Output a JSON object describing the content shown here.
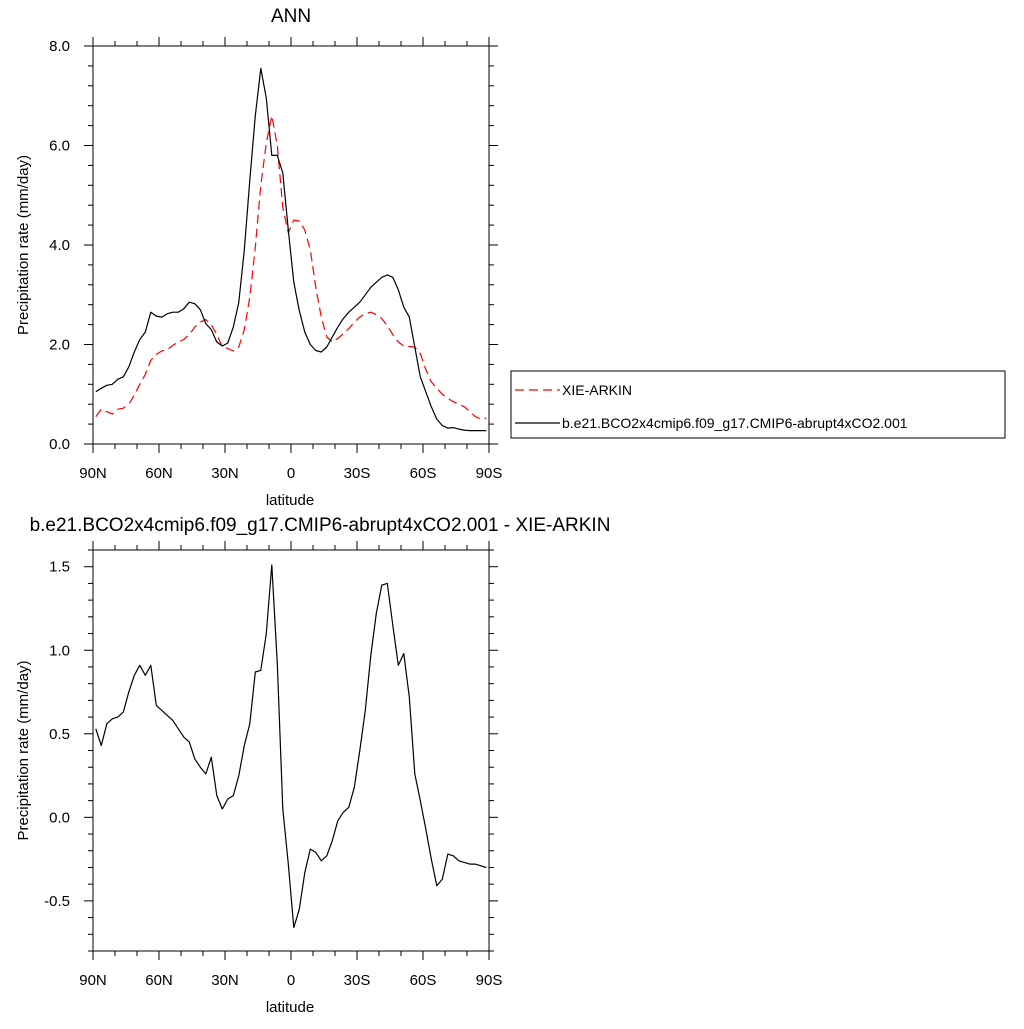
{
  "chart_data": [
    {
      "type": "line",
      "title": "ANN",
      "xlabel": "latitude",
      "ylabel": "Precipitation rate (mm/day)",
      "xlim": [
        90,
        -90
      ],
      "ylim": [
        0,
        8
      ],
      "x_ticks": [
        90,
        60,
        30,
        0,
        -30,
        -60,
        -90
      ],
      "x_tick_labels": [
        "90N",
        "60N",
        "30N",
        "0",
        "30S",
        "60S",
        "90S"
      ],
      "y_ticks": [
        0,
        2,
        4,
        6,
        8
      ],
      "y_tick_labels": [
        "0.0",
        "2.0",
        "4.0",
        "6.0",
        "8.0"
      ],
      "legend_position": "right",
      "series": [
        {
          "name": "XIE-ARKIN",
          "color": "#ff0000",
          "dashed": true,
          "x": [
            88.75,
            86.25,
            83.75,
            81.25,
            78.75,
            76.25,
            73.75,
            71.25,
            68.75,
            66.25,
            63.75,
            61.25,
            58.75,
            56.25,
            53.75,
            51.25,
            48.75,
            46.25,
            43.75,
            41.25,
            38.75,
            36.25,
            33.75,
            31.25,
            28.75,
            26.25,
            23.75,
            21.25,
            18.75,
            16.25,
            13.75,
            11.25,
            8.75,
            6.25,
            3.75,
            1.25,
            -1.25,
            -3.75,
            -6.25,
            -8.75,
            -11.25,
            -13.75,
            -16.25,
            -18.75,
            -21.25,
            -23.75,
            -26.25,
            -28.75,
            -31.25,
            -33.75,
            -36.25,
            -38.75,
            -41.25,
            -43.75,
            -46.25,
            -48.75,
            -51.25,
            -53.75,
            -56.25,
            -58.75,
            -61.25,
            -63.75,
            -66.25,
            -68.75,
            -71.25,
            -73.75,
            -76.25,
            -78.75,
            -81.25,
            -83.75,
            -86.25,
            -88.75
          ],
          "y": [
            0.55,
            0.7,
            0.65,
            0.6,
            0.7,
            0.72,
            0.8,
            0.98,
            1.2,
            1.4,
            1.68,
            1.8,
            1.87,
            1.9,
            1.98,
            2.05,
            2.1,
            2.2,
            2.35,
            2.45,
            2.5,
            2.4,
            2.2,
            1.95,
            1.92,
            1.87,
            1.95,
            2.3,
            2.95,
            3.95,
            5.2,
            6.05,
            6.6,
            6.0,
            4.75,
            4.25,
            4.5,
            4.48,
            4.3,
            3.9,
            3.15,
            2.55,
            2.15,
            2.05,
            2.12,
            2.22,
            2.32,
            2.45,
            2.55,
            2.62,
            2.65,
            2.6,
            2.52,
            2.38,
            2.2,
            2.05,
            1.97,
            1.96,
            1.95,
            1.82,
            1.5,
            1.25,
            1.12,
            1.0,
            0.92,
            0.85,
            0.8,
            0.75,
            0.65,
            0.55,
            0.5,
            0.52
          ]
        },
        {
          "name": "b.e21.BCO2x4cmip6.f09_g17.CMIP6-abrupt4xCO2.001",
          "color": "#000000",
          "dashed": false,
          "x": [
            88.75,
            86.25,
            83.75,
            81.25,
            78.75,
            76.25,
            73.75,
            71.25,
            68.75,
            66.25,
            63.75,
            61.25,
            58.75,
            56.25,
            53.75,
            51.25,
            48.75,
            46.25,
            43.75,
            41.25,
            38.75,
            36.25,
            33.75,
            31.25,
            28.75,
            26.25,
            23.75,
            21.25,
            18.75,
            16.25,
            13.75,
            11.25,
            8.75,
            6.25,
            3.75,
            1.25,
            -1.25,
            -3.75,
            -6.25,
            -8.75,
            -11.25,
            -13.75,
            -16.25,
            -18.75,
            -21.25,
            -23.75,
            -26.25,
            -28.75,
            -31.25,
            -33.75,
            -36.25,
            -38.75,
            -41.25,
            -43.75,
            -46.25,
            -48.75,
            -51.25,
            -53.75,
            -56.25,
            -58.75,
            -61.25,
            -63.75,
            -66.25,
            -68.75,
            -71.25,
            -73.75,
            -76.25,
            -78.75,
            -81.25,
            -83.75,
            -86.25,
            -88.75
          ],
          "y": [
            1.05,
            1.12,
            1.18,
            1.2,
            1.3,
            1.35,
            1.55,
            1.85,
            2.1,
            2.25,
            2.65,
            2.57,
            2.55,
            2.62,
            2.65,
            2.65,
            2.72,
            2.85,
            2.82,
            2.7,
            2.42,
            2.3,
            2.05,
            1.97,
            2.03,
            2.35,
            2.85,
            3.9,
            5.3,
            6.6,
            7.55,
            6.95,
            5.8,
            5.8,
            5.45,
            4.3,
            3.25,
            2.68,
            2.25,
            2.0,
            1.88,
            1.85,
            1.95,
            2.15,
            2.35,
            2.52,
            2.65,
            2.75,
            2.85,
            3.0,
            3.15,
            3.25,
            3.35,
            3.4,
            3.35,
            3.1,
            2.75,
            2.55,
            1.95,
            1.35,
            1.05,
            0.75,
            0.5,
            0.37,
            0.32,
            0.33,
            0.3,
            0.28,
            0.27,
            0.27,
            0.27,
            0.27
          ]
        }
      ]
    },
    {
      "type": "line",
      "title": "b.e21.BCO2x4cmip6.f09_g17.CMIP6-abrupt4xCO2.001 - XIE-ARKIN",
      "xlabel": "latitude",
      "ylabel": "Precipitation rate (mm/day)",
      "xlim": [
        90,
        -90
      ],
      "ylim": [
        -0.8,
        1.6
      ],
      "x_ticks": [
        90,
        60,
        30,
        0,
        -30,
        -60,
        -90
      ],
      "x_tick_labels": [
        "90N",
        "60N",
        "30N",
        "0",
        "30S",
        "60S",
        "90S"
      ],
      "y_ticks": [
        -0.5,
        0,
        0.5,
        1.0,
        1.5
      ],
      "y_tick_labels": [
        "-0.5",
        "0.0",
        "0.5",
        "1.0",
        "1.5"
      ],
      "series": [
        {
          "color": "#000000",
          "dashed": false,
          "x": [
            88.75,
            86.25,
            83.75,
            81.25,
            78.75,
            76.25,
            73.75,
            71.25,
            68.75,
            66.25,
            63.75,
            61.25,
            58.75,
            56.25,
            53.75,
            51.25,
            48.75,
            46.25,
            43.75,
            41.25,
            38.75,
            36.25,
            33.75,
            31.25,
            28.75,
            26.25,
            23.75,
            21.25,
            18.75,
            16.25,
            13.75,
            11.25,
            8.75,
            6.25,
            3.75,
            1.25,
            -1.25,
            -3.75,
            -6.25,
            -8.75,
            -11.25,
            -13.75,
            -16.25,
            -18.75,
            -21.25,
            -23.75,
            -26.25,
            -28.75,
            -31.25,
            -33.75,
            -36.25,
            -38.75,
            -41.25,
            -43.75,
            -46.25,
            -48.75,
            -51.25,
            -53.75,
            -56.25,
            -58.75,
            -61.25,
            -63.75,
            -66.25,
            -68.75,
            -71.25,
            -73.75,
            -76.25,
            -78.75,
            -81.25,
            -83.75,
            -86.25,
            -88.75
          ],
          "y": [
            0.53,
            0.43,
            0.56,
            0.59,
            0.6,
            0.63,
            0.75,
            0.85,
            0.91,
            0.85,
            0.91,
            0.67,
            0.64,
            0.61,
            0.58,
            0.53,
            0.48,
            0.45,
            0.35,
            0.3,
            0.26,
            0.36,
            0.13,
            0.05,
            0.11,
            0.13,
            0.25,
            0.43,
            0.56,
            0.87,
            0.88,
            1.1,
            1.51,
            0.92,
            0.05,
            -0.28,
            -0.66,
            -0.55,
            -0.33,
            -0.19,
            -0.21,
            -0.26,
            -0.23,
            -0.14,
            -0.02,
            0.03,
            0.06,
            0.18,
            0.4,
            0.64,
            0.97,
            1.22,
            1.39,
            1.4,
            1.15,
            0.91,
            0.98,
            0.72,
            0.26,
            0.1,
            -0.07,
            -0.25,
            -0.41,
            -0.37,
            -0.22,
            -0.23,
            -0.26,
            -0.27,
            -0.28,
            -0.28,
            -0.29,
            -0.3
          ]
        }
      ]
    }
  ]
}
